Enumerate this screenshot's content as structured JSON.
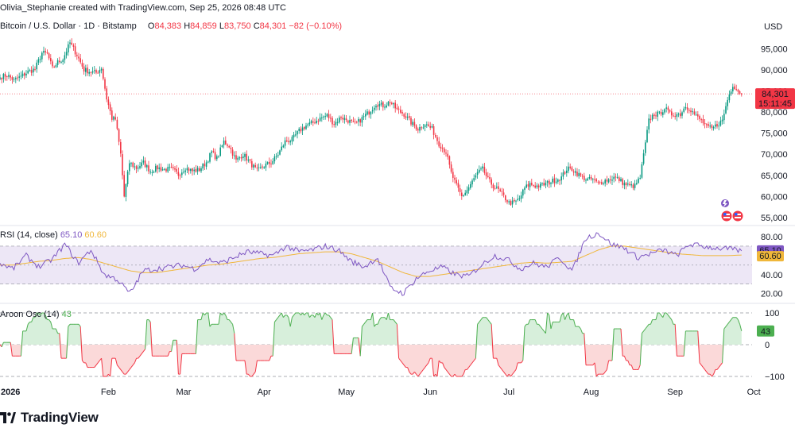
{
  "header": {
    "created_by": "Olivia_Stephanie created with TradingView.com, Sep 25, 2026 08:48 UTC",
    "symbol": "Bitcoin / U.S. Dollar · 1D · Bitstamp",
    "o_label": "O",
    "o_value": "84,383",
    "h_label": "H",
    "h_value": "84,859",
    "l_label": "L",
    "l_value": "83,750",
    "c_label": "C",
    "c_value": "84,301",
    "change": "−82 (−0.10%)",
    "currency": "USD"
  },
  "price_badge": {
    "price": "84,301",
    "countdown": "15:11:45"
  },
  "rsi_label": {
    "name": "RSI (14, close)",
    "rsi_value": "65.10",
    "ma_value": "60.60"
  },
  "aroon_label": {
    "name": "Aroon Osc (14)",
    "value": "43"
  },
  "brand": {
    "name": "TradingView"
  },
  "colors": {
    "up": "#089981",
    "down": "#f23645",
    "rsi": "#7e57c2",
    "rsi_ma": "#f0b73a",
    "aroon_up_fill": "#d7efdb",
    "aroon_down_fill": "#fbd9d9",
    "rsi_band": "#ede7f6"
  },
  "chart_data": [
    {
      "type": "candlestick",
      "title": "Bitcoin / U.S. Dollar · 1D · Bitstamp",
      "ylabel": "USD",
      "ylim": [
        53500,
        99000
      ],
      "yticks": [
        55000,
        60000,
        65000,
        70000,
        75000,
        80000,
        85000,
        90000,
        95000
      ],
      "x_tick_labels": [
        "2026",
        "Feb",
        "Mar",
        "Apr",
        "May",
        "Jun",
        "Jul",
        "Aug",
        "Sep",
        "Oct"
      ],
      "last_price": 84301,
      "anchors": [
        [
          0,
          88200
        ],
        [
          4,
          88800
        ],
        [
          8,
          87500
        ],
        [
          12,
          88400
        ],
        [
          16,
          89500
        ],
        [
          20,
          90200
        ],
        [
          24,
          94000
        ],
        [
          27,
          93800
        ],
        [
          30,
          90300
        ],
        [
          33,
          91800
        ],
        [
          36,
          92600
        ],
        [
          40,
          96400
        ],
        [
          44,
          93500
        ],
        [
          48,
          90000
        ],
        [
          52,
          89500
        ],
        [
          55,
          89300
        ],
        [
          58,
          90500
        ],
        [
          61,
          83200
        ],
        [
          64,
          78500
        ],
        [
          66,
          78300
        ],
        [
          69,
          70000
        ],
        [
          71,
          60000
        ],
        [
          74,
          68000
        ],
        [
          78,
          66700
        ],
        [
          82,
          68000
        ],
        [
          86,
          66000
        ],
        [
          90,
          66800
        ],
        [
          94,
          66400
        ],
        [
          98,
          66500
        ],
        [
          102,
          65200
        ],
        [
          106,
          66800
        ],
        [
          110,
          66000
        ],
        [
          114,
          66400
        ],
        [
          118,
          68100
        ],
        [
          121,
          70500
        ],
        [
          124,
          69000
        ],
        [
          128,
          73000
        ],
        [
          131,
          72000
        ],
        [
          135,
          68500
        ],
        [
          139,
          70000
        ],
        [
          143,
          68000
        ],
        [
          147,
          66000
        ],
        [
          151,
          67300
        ],
        [
          155,
          68000
        ],
        [
          159,
          70000
        ],
        [
          163,
          73000
        ],
        [
          167,
          73500
        ],
        [
          171,
          75500
        ],
        [
          175,
          76800
        ],
        [
          179,
          77500
        ],
        [
          183,
          78500
        ],
        [
          187,
          79200
        ],
        [
          191,
          77200
        ],
        [
          195,
          78800
        ],
        [
          199,
          78000
        ],
        [
          203,
          77000
        ],
        [
          207,
          78500
        ],
        [
          211,
          80000
        ],
        [
          215,
          82000
        ],
        [
          219,
          81500
        ],
        [
          223,
          82400
        ],
        [
          227,
          80500
        ],
        [
          231,
          79500
        ],
        [
          235,
          77500
        ],
        [
          239,
          76000
        ],
        [
          243,
          77200
        ],
        [
          247,
          76000
        ],
        [
          251,
          72500
        ],
        [
          255,
          70500
        ],
        [
          258,
          65500
        ],
        [
          261,
          62500
        ],
        [
          264,
          60000
        ],
        [
          267,
          61500
        ],
        [
          270,
          63500
        ],
        [
          273,
          65500
        ],
        [
          276,
          66500
        ],
        [
          279,
          64000
        ],
        [
          282,
          62500
        ],
        [
          285,
          61500
        ],
        [
          288,
          60000
        ],
        [
          291,
          58500
        ],
        [
          294,
          58500
        ],
        [
          297,
          59500
        ],
        [
          300,
          62000
        ],
        [
          303,
          63000
        ],
        [
          306,
          62500
        ],
        [
          309,
          62500
        ],
        [
          312,
          63000
        ],
        [
          315,
          63500
        ],
        [
          318,
          64000
        ],
        [
          321,
          64500
        ],
        [
          324,
          66500
        ],
        [
          327,
          66500
        ],
        [
          330,
          65500
        ],
        [
          333,
          64500
        ],
        [
          336,
          64000
        ],
        [
          339,
          64000
        ],
        [
          342,
          63000
        ],
        [
          345,
          63700
        ],
        [
          348,
          64000
        ],
        [
          351,
          64500
        ],
        [
          354,
          64000
        ],
        [
          357,
          63000
        ],
        [
          360,
          62500
        ],
        [
          363,
          62500
        ],
        [
          366,
          64500
        ],
        [
          369,
          72500
        ],
        [
          371,
          78000
        ],
        [
          374,
          79500
        ],
        [
          377,
          79500
        ],
        [
          380,
          81000
        ],
        [
          383,
          79500
        ],
        [
          386,
          79500
        ],
        [
          389,
          79500
        ],
        [
          392,
          81500
        ],
        [
          395,
          80500
        ],
        [
          398,
          79000
        ],
        [
          401,
          78000
        ],
        [
          404,
          76500
        ],
        [
          407,
          76000
        ],
        [
          410,
          77000
        ],
        [
          413,
          78000
        ],
        [
          416,
          83000
        ],
        [
          419,
          86500
        ],
        [
          422,
          85000
        ],
        [
          424,
          84301
        ]
      ],
      "x_ticks_at": [
        6,
        62,
        105,
        151,
        198,
        246,
        291,
        338,
        386,
        431
      ]
    },
    {
      "type": "line",
      "title": "RSI (14, close)",
      "ylim": [
        13,
        85
      ],
      "yticks": [
        20,
        40,
        60,
        80
      ],
      "band": [
        30,
        70
      ],
      "series": [
        {
          "name": "RSI",
          "values": [
            52,
            46,
            60,
            48,
            56,
            72,
            52,
            66,
            40,
            35,
            20,
            44,
            46,
            48,
            50,
            46,
            56,
            52,
            58,
            64,
            62,
            60,
            70,
            64,
            66,
            70,
            66,
            54,
            48,
            58,
            26,
            20,
            36,
            44,
            48,
            40,
            38,
            50,
            60,
            56,
            46,
            52,
            48,
            58,
            44,
            78,
            84,
            72,
            68,
            58,
            62,
            66,
            60,
            72,
            70,
            68,
            67,
            65
          ]
        },
        {
          "name": "RSI MA",
          "values": [
            50,
            50,
            52,
            54,
            55,
            57,
            58,
            56,
            52,
            48,
            44,
            42,
            42,
            44,
            46,
            48,
            50,
            51,
            53,
            55,
            57,
            58,
            60,
            62,
            63,
            64,
            64,
            62,
            58,
            54,
            48,
            42,
            38,
            38,
            40,
            42,
            44,
            46,
            48,
            50,
            52,
            53,
            52,
            53,
            54,
            60,
            66,
            70,
            70,
            68,
            66,
            64,
            62,
            61,
            60,
            60,
            60,
            60.6
          ]
        }
      ]
    },
    {
      "type": "area",
      "title": "Aroon Osc (14)",
      "ylim": [
        -110,
        115
      ],
      "yticks": [
        -100,
        0,
        100
      ],
      "last_value": 43
    }
  ]
}
